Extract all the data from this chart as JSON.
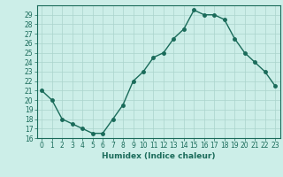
{
  "x": [
    0,
    1,
    2,
    3,
    4,
    5,
    6,
    7,
    8,
    9,
    10,
    11,
    12,
    13,
    14,
    15,
    16,
    17,
    18,
    19,
    20,
    21,
    22,
    23
  ],
  "y": [
    21,
    20,
    18,
    17.5,
    17,
    16.5,
    16.5,
    18,
    19.5,
    22,
    23,
    24.5,
    25,
    26.5,
    27.5,
    29.5,
    29,
    29,
    28.5,
    26.5,
    25,
    24,
    23,
    21.5
  ],
  "line_color": "#1a6b5a",
  "marker_color": "#1a6b5a",
  "bg_color": "#cceee8",
  "grid_color": "#aad4cc",
  "xlabel": "Humidex (Indice chaleur)",
  "ylim": [
    16,
    30
  ],
  "xlim_min": -0.5,
  "xlim_max": 23.5,
  "yticks": [
    16,
    17,
    18,
    19,
    20,
    21,
    22,
    23,
    24,
    25,
    26,
    27,
    28,
    29
  ],
  "xticks": [
    0,
    1,
    2,
    3,
    4,
    5,
    6,
    7,
    8,
    9,
    10,
    11,
    12,
    13,
    14,
    15,
    16,
    17,
    18,
    19,
    20,
    21,
    22,
    23
  ],
  "xtick_labels": [
    "0",
    "1",
    "2",
    "3",
    "4",
    "5",
    "6",
    "7",
    "8",
    "9",
    "10",
    "11",
    "12",
    "13",
    "14",
    "15",
    "16",
    "17",
    "18",
    "19",
    "20",
    "21",
    "22",
    "23"
  ],
  "ytick_labels": [
    "16",
    "17",
    "18",
    "19",
    "20",
    "21",
    "22",
    "23",
    "24",
    "25",
    "26",
    "27",
    "28",
    "29"
  ],
  "xlabel_fontsize": 6.5,
  "tick_fontsize": 5.5,
  "marker_size": 2.5,
  "line_width": 1.0
}
